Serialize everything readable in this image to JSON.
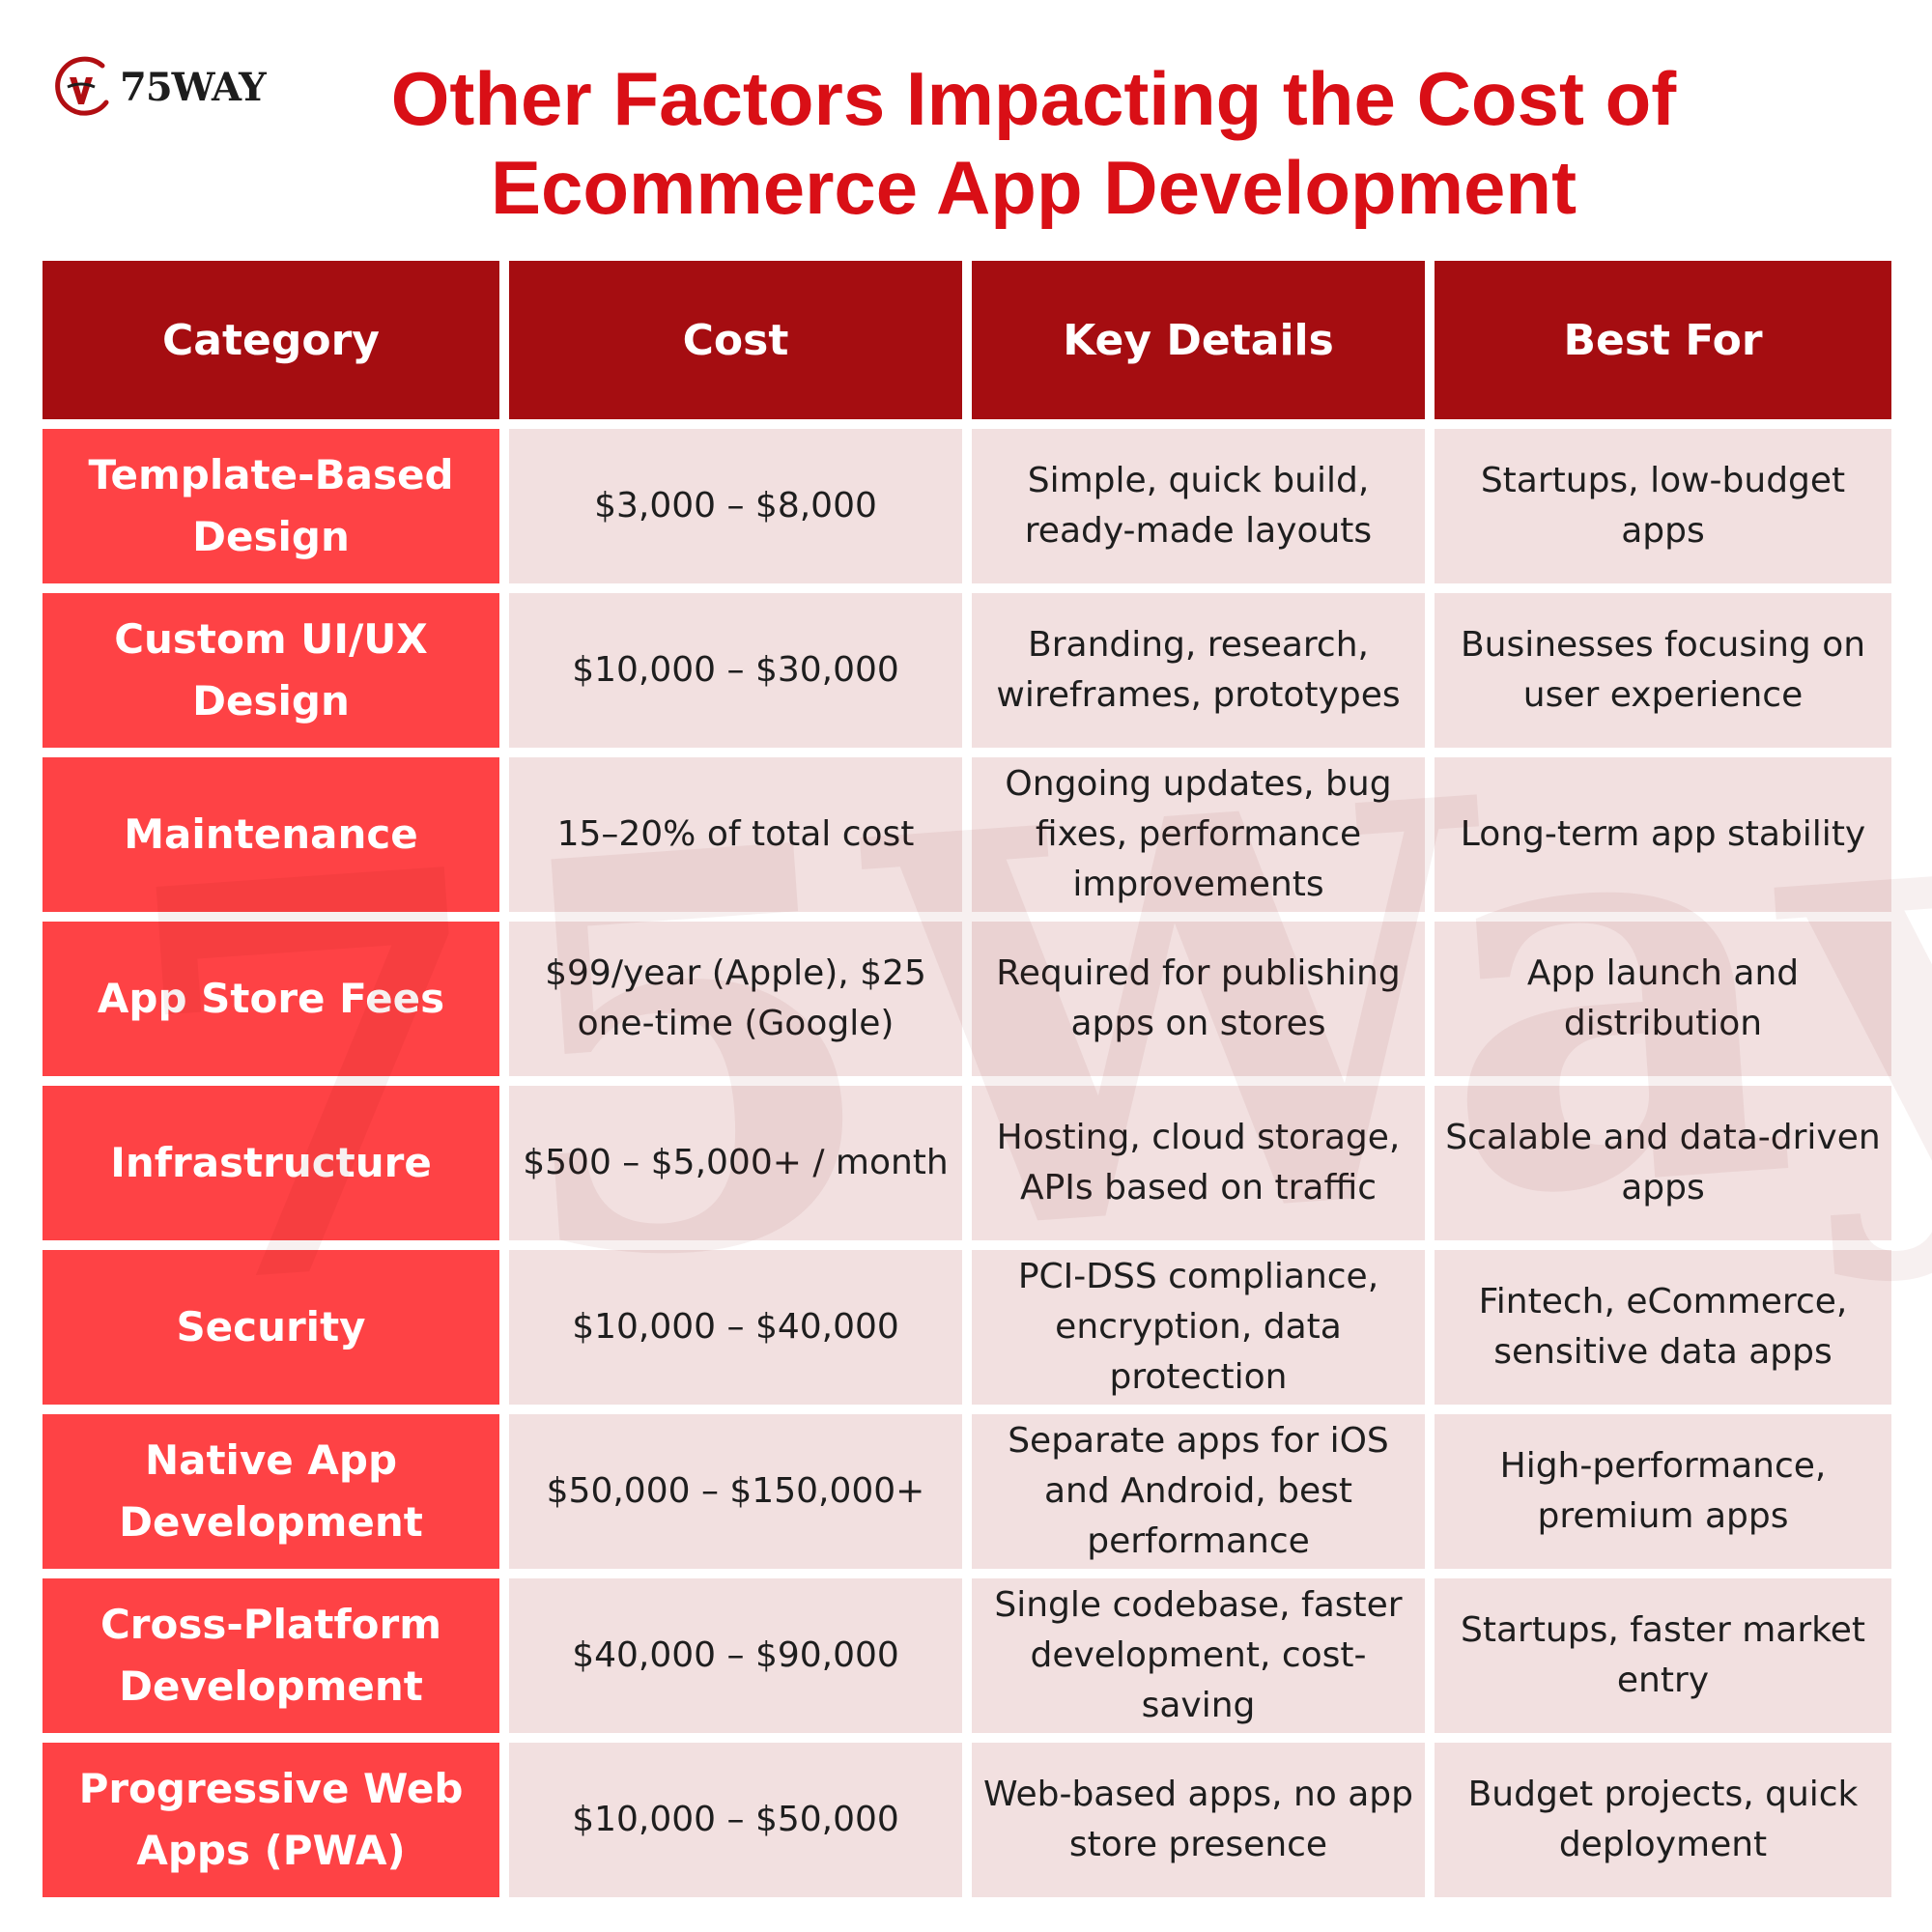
{
  "logo": {
    "text": "75WAY",
    "icon": "75way-logo-icon"
  },
  "title": {
    "line1": "Other Factors Impacting the Cost of",
    "line2": "Ecommerce App Development"
  },
  "watermark": "75Way",
  "colors": {
    "title": "#d90f16",
    "header_bg": "#a50d11",
    "category_bg": "#fe4245",
    "cell_bg": "#f2e0e0"
  },
  "table": {
    "headers": [
      "Category",
      "Cost",
      "Key Details",
      "Best For"
    ],
    "rows": [
      {
        "category": "Template-Based Design",
        "cost": "$3,000 – $8,000",
        "details": "Simple, quick build, ready-made layouts",
        "best_for": "Startups, low-budget apps"
      },
      {
        "category": "Custom UI/UX Design",
        "cost": "$10,000 – $30,000",
        "details": "Branding, research, wireframes, prototypes",
        "best_for": "Businesses focusing on user experience"
      },
      {
        "category": "Maintenance",
        "cost": "15–20% of total cost",
        "details": "Ongoing updates, bug fixes, performance improvements",
        "best_for": "Long-term app stability"
      },
      {
        "category": "App Store Fees",
        "cost": "$99/year (Apple), $25 one-time (Google)",
        "details": "Required for publishing apps on stores",
        "best_for": "App launch and distribution"
      },
      {
        "category": "Infrastructure",
        "cost": "$500 – $5,000+ / month",
        "details": "Hosting, cloud storage, APIs based on traffic",
        "best_for": "Scalable and data-driven apps"
      },
      {
        "category": "Security",
        "cost": "$10,000 – $40,000",
        "details": "PCI-DSS compliance, encryption, data protection",
        "best_for": "Fintech, eCommerce, sensitive data apps"
      },
      {
        "category": "Native App Development",
        "cost": "$50,000 – $150,000+",
        "details": "Separate apps for iOS and Android, best performance",
        "best_for": "High-performance, premium apps"
      },
      {
        "category": "Cross-Platform Development",
        "cost": "$40,000 – $90,000",
        "details": "Single codebase, faster development, cost-saving",
        "best_for": "Startups, faster market entry"
      },
      {
        "category": "Progressive Web Apps (PWA)",
        "cost": "$10,000 – $50,000",
        "details": "Web-based apps, no app store presence",
        "best_for": "Budget projects, quick deployment"
      }
    ]
  }
}
